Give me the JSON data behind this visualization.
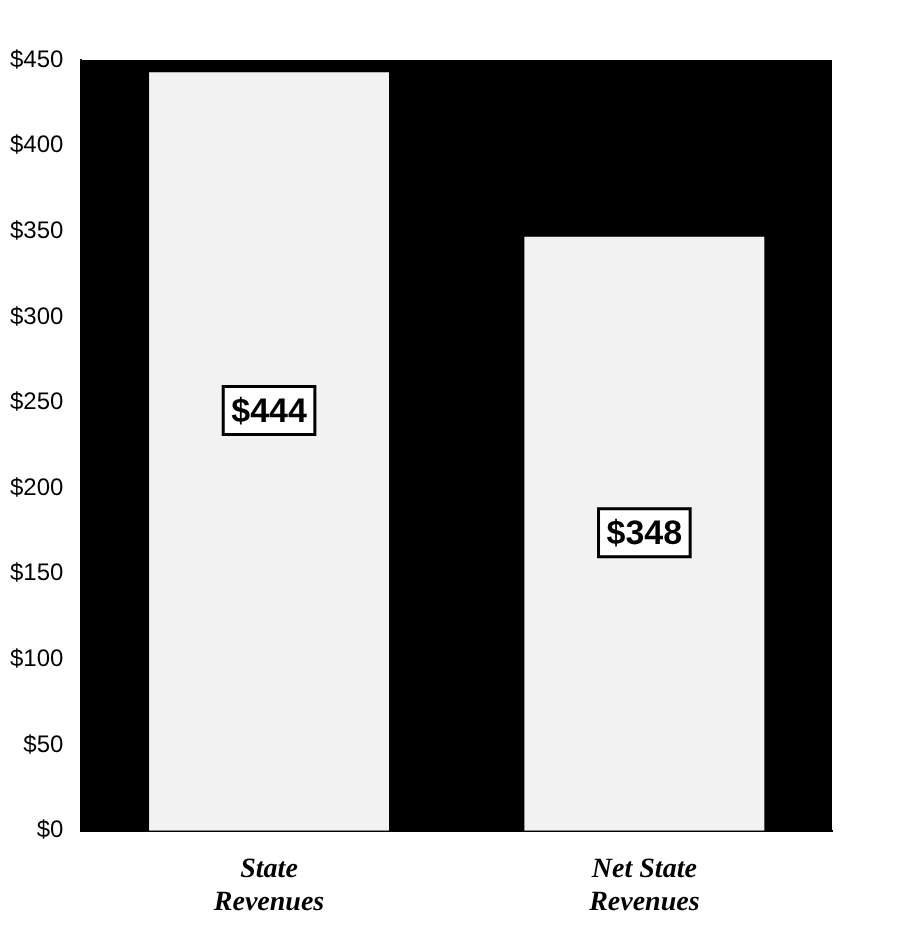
{
  "chart_data": {
    "type": "bar",
    "categories": [
      "State Revenues",
      "Net State Revenues"
    ],
    "values": [
      444,
      348
    ],
    "value_labels": [
      "$444",
      "$348"
    ],
    "color": "#f2f2f2",
    "ylim": [
      0,
      450
    ],
    "yticks": [
      {
        "value": 0,
        "label": "$0"
      },
      {
        "value": 50,
        "label": "$50"
      },
      {
        "value": 100,
        "label": "$100"
      },
      {
        "value": 150,
        "label": "$150"
      },
      {
        "value": 200,
        "label": "$200"
      },
      {
        "value": 250,
        "label": "$250"
      },
      {
        "value": 300,
        "label": "$300"
      },
      {
        "value": 350,
        "label": "$350"
      },
      {
        "value": 400,
        "label": "$400"
      },
      {
        "value": 450,
        "label": "$450"
      }
    ],
    "grid": false,
    "legend": false
  }
}
